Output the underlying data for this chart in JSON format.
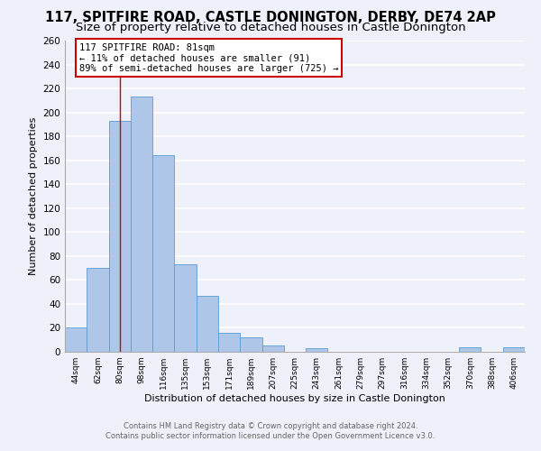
{
  "title": "117, SPITFIRE ROAD, CASTLE DONINGTON, DERBY, DE74 2AP",
  "subtitle": "Size of property relative to detached houses in Castle Donington",
  "xlabel": "Distribution of detached houses by size in Castle Donington",
  "ylabel": "Number of detached properties",
  "footer_line1": "Contains HM Land Registry data © Crown copyright and database right 2024.",
  "footer_line2": "Contains public sector information licensed under the Open Government Licence v3.0.",
  "bin_labels": [
    "44sqm",
    "62sqm",
    "80sqm",
    "98sqm",
    "116sqm",
    "135sqm",
    "153sqm",
    "171sqm",
    "189sqm",
    "207sqm",
    "225sqm",
    "243sqm",
    "261sqm",
    "279sqm",
    "297sqm",
    "316sqm",
    "334sqm",
    "352sqm",
    "370sqm",
    "388sqm",
    "406sqm"
  ],
  "bar_values": [
    20,
    70,
    193,
    213,
    164,
    73,
    47,
    16,
    12,
    5,
    0,
    3,
    0,
    0,
    0,
    0,
    0,
    0,
    4,
    0,
    4
  ],
  "bar_color": "#aec6e8",
  "bar_edge_color": "#5b9bd5",
  "vline_x_index": 2,
  "vline_color": "#cc0000",
  "annotation_title": "117 SPITFIRE ROAD: 81sqm",
  "annotation_line1": "← 11% of detached houses are smaller (91)",
  "annotation_line2": "89% of semi-detached houses are larger (725) →",
  "annotation_box_edge_color": "#cc0000",
  "annotation_box_face_color": "#ffffff",
  "ylim": [
    0,
    260
  ],
  "yticks": [
    0,
    20,
    40,
    60,
    80,
    100,
    120,
    140,
    160,
    180,
    200,
    220,
    240,
    260
  ],
  "background_color": "#eef1f9",
  "plot_background_color": "#eef1f9",
  "grid_color": "#ffffff",
  "title_fontsize": 10.5,
  "subtitle_fontsize": 9.5,
  "bar_fontsize": 7.5,
  "axis_fontsize": 8
}
